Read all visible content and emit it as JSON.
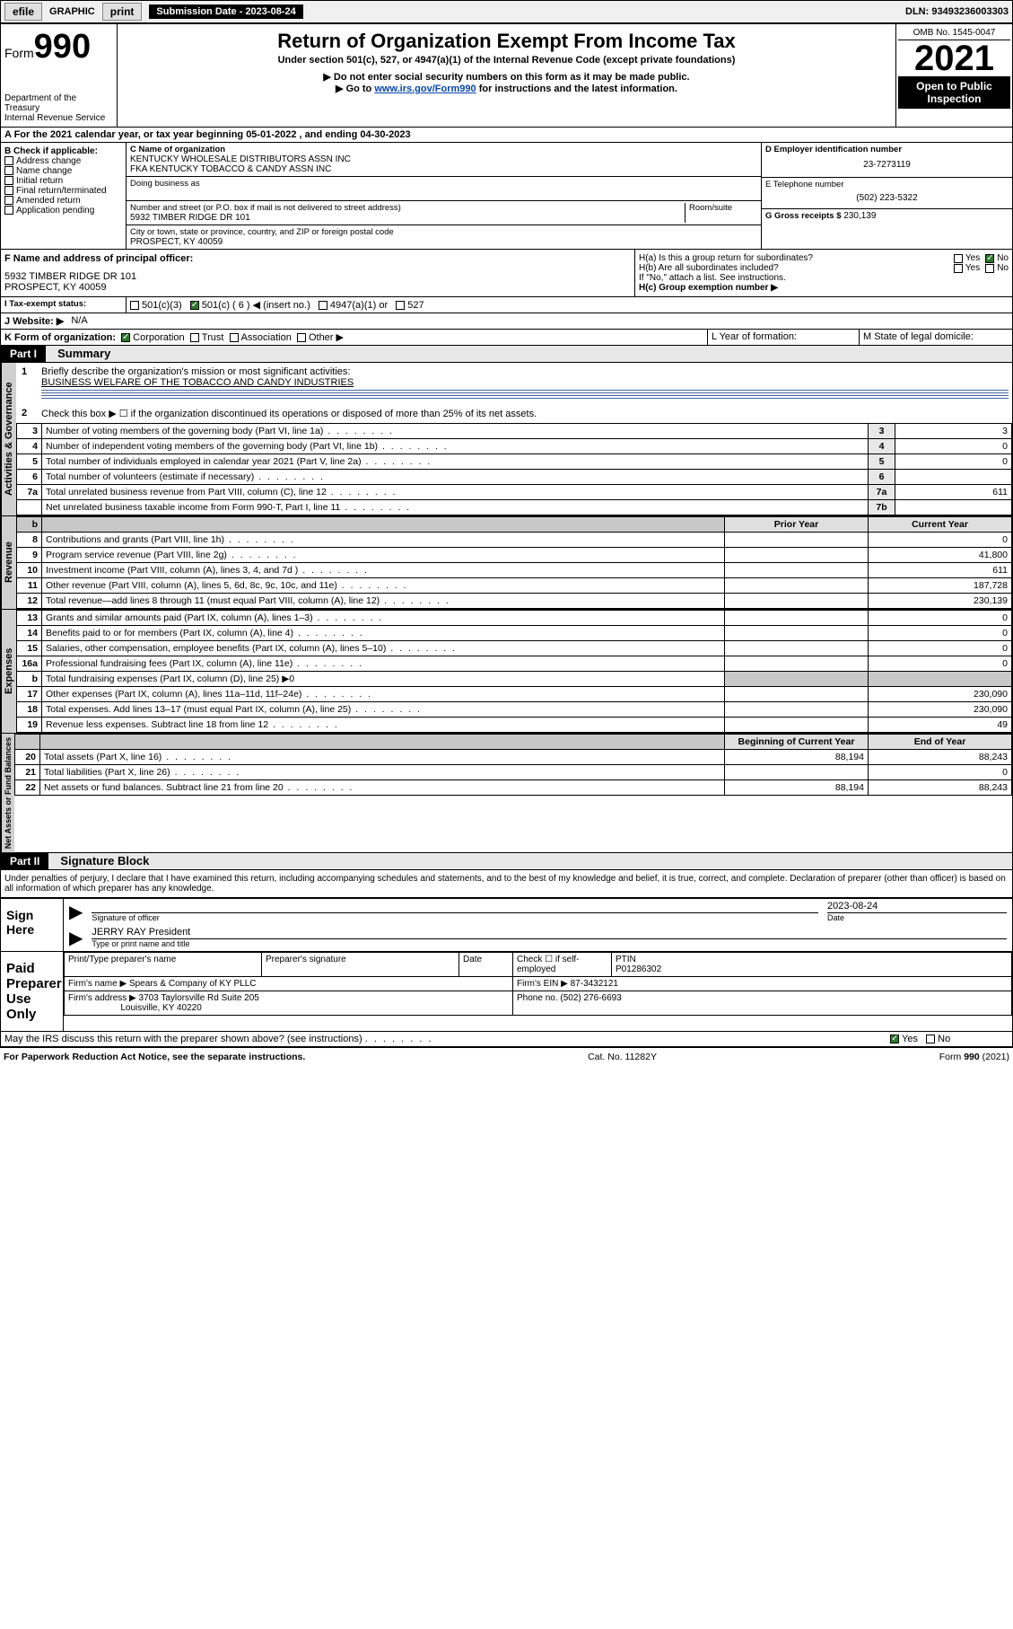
{
  "topbar": {
    "efile": "efile",
    "graphic": "GRAPHIC",
    "print": "print",
    "subdate_label": "Submission Date - 2023-08-24",
    "dln": "DLN: 93493236003303"
  },
  "header": {
    "form_label": "Form",
    "form_num": "990",
    "dept": "Department of the Treasury",
    "irs": "Internal Revenue Service",
    "title": "Return of Organization Exempt From Income Tax",
    "subtitle": "Under section 501(c), 527, or 4947(a)(1) of the Internal Revenue Code (except private foundations)",
    "note1": "▶ Do not enter social security numbers on this form as it may be made public.",
    "note2_a": "▶ Go to ",
    "note2_link": "www.irs.gov/Form990",
    "note2_b": " for instructions and the latest information.",
    "omb": "OMB No. 1545-0047",
    "year": "2021",
    "open": "Open to Public Inspection"
  },
  "line_a": "A For the 2021 calendar year, or tax year beginning 05-01-2022   , and ending 04-30-2023",
  "block_b": {
    "label": "B Check if applicable:",
    "opts": [
      "Address change",
      "Name change",
      "Initial return",
      "Final return/terminated",
      "Amended return",
      "Application pending"
    ]
  },
  "block_c": {
    "name_label": "C Name of organization",
    "name1": "KENTUCKY WHOLESALE DISTRIBUTORS ASSN INC",
    "name2": "FKA KENTUCKY TOBACCO & CANDY ASSN INC",
    "dba_label": "Doing business as",
    "street_label": "Number and street (or P.O. box if mail is not delivered to street address)",
    "room_label": "Room/suite",
    "street": "5932 TIMBER RIDGE DR 101",
    "city_label": "City or town, state or province, country, and ZIP or foreign postal code",
    "city": "PROSPECT, KY  40059"
  },
  "block_d": {
    "label": "D Employer identification number",
    "val": "23-7273119"
  },
  "block_e": {
    "label": "E Telephone number",
    "val": "(502) 223-5322"
  },
  "block_g": {
    "label": "G Gross receipts $",
    "val": "230,139"
  },
  "block_f": {
    "label": "F Name and address of principal officer:",
    "addr1": "5932 TIMBER RIDGE DR 101",
    "addr2": "PROSPECT, KY  40059"
  },
  "block_h": {
    "ha": "H(a)  Is this a group return for subordinates?",
    "hb": "H(b)  Are all subordinates included?",
    "hb_note": "If \"No,\" attach a list. See instructions.",
    "hc": "H(c)  Group exemption number ▶",
    "yes": "Yes",
    "no": "No"
  },
  "block_i": {
    "label": "I   Tax-exempt status:",
    "o1": "501(c)(3)",
    "o2": "501(c) ( 6 ) ◀ (insert no.)",
    "o3": "4947(a)(1) or",
    "o4": "527"
  },
  "block_j": {
    "label": "J   Website: ▶",
    "val": "N/A"
  },
  "block_k": {
    "label": "K Form of organization:",
    "o1": "Corporation",
    "o2": "Trust",
    "o3": "Association",
    "o4": "Other ▶"
  },
  "block_l": "L Year of formation:",
  "block_m": "M State of legal domicile:",
  "part1": {
    "hdr": "Part I",
    "title": "Summary"
  },
  "summary": {
    "q1": "Briefly describe the organization's mission or most significant activities:",
    "q1_ans": "BUSINESS WELFARE OF THE TOBACCO AND CANDY INDUSTRIES",
    "q2": "Check this box ▶ ☐  if the organization discontinued its operations or disposed of more than 25% of its net assets.",
    "rows_ag": [
      {
        "n": "3",
        "t": "Number of voting members of the governing body (Part VI, line 1a)",
        "box": "3",
        "v": "3"
      },
      {
        "n": "4",
        "t": "Number of independent voting members of the governing body (Part VI, line 1b)",
        "box": "4",
        "v": "0"
      },
      {
        "n": "5",
        "t": "Total number of individuals employed in calendar year 2021 (Part V, line 2a)",
        "box": "5",
        "v": "0"
      },
      {
        "n": "6",
        "t": "Total number of volunteers (estimate if necessary)",
        "box": "6",
        "v": ""
      },
      {
        "n": "7a",
        "t": "Total unrelated business revenue from Part VIII, column (C), line 12",
        "box": "7a",
        "v": "611"
      },
      {
        "n": "",
        "t": "Net unrelated business taxable income from Form 990-T, Part I, line 11",
        "box": "7b",
        "v": ""
      }
    ],
    "col_prior": "Prior Year",
    "col_curr": "Current Year",
    "rows_rev": [
      {
        "n": "8",
        "t": "Contributions and grants (Part VIII, line 1h)",
        "p": "",
        "c": "0"
      },
      {
        "n": "9",
        "t": "Program service revenue (Part VIII, line 2g)",
        "p": "",
        "c": "41,800"
      },
      {
        "n": "10",
        "t": "Investment income (Part VIII, column (A), lines 3, 4, and 7d )",
        "p": "",
        "c": "611"
      },
      {
        "n": "11",
        "t": "Other revenue (Part VIII, column (A), lines 5, 6d, 8c, 9c, 10c, and 11e)",
        "p": "",
        "c": "187,728"
      },
      {
        "n": "12",
        "t": "Total revenue—add lines 8 through 11 (must equal Part VIII, column (A), line 12)",
        "p": "",
        "c": "230,139"
      }
    ],
    "rows_exp": [
      {
        "n": "13",
        "t": "Grants and similar amounts paid (Part IX, column (A), lines 1–3)",
        "p": "",
        "c": "0"
      },
      {
        "n": "14",
        "t": "Benefits paid to or for members (Part IX, column (A), line 4)",
        "p": "",
        "c": "0"
      },
      {
        "n": "15",
        "t": "Salaries, other compensation, employee benefits (Part IX, column (A), lines 5–10)",
        "p": "",
        "c": "0"
      },
      {
        "n": "16a",
        "t": "Professional fundraising fees (Part IX, column (A), line 11e)",
        "p": "",
        "c": "0"
      },
      {
        "n": "b",
        "t": "Total fundraising expenses (Part IX, column (D), line 25) ▶0",
        "p": "grey",
        "c": "grey"
      },
      {
        "n": "17",
        "t": "Other expenses (Part IX, column (A), lines 11a–11d, 11f–24e)",
        "p": "",
        "c": "230,090"
      },
      {
        "n": "18",
        "t": "Total expenses. Add lines 13–17 (must equal Part IX, column (A), line 25)",
        "p": "",
        "c": "230,090"
      },
      {
        "n": "19",
        "t": "Revenue less expenses. Subtract line 18 from line 12",
        "p": "",
        "c": "49"
      }
    ],
    "col_beg": "Beginning of Current Year",
    "col_end": "End of Year",
    "rows_net": [
      {
        "n": "20",
        "t": "Total assets (Part X, line 16)",
        "p": "88,194",
        "c": "88,243"
      },
      {
        "n": "21",
        "t": "Total liabilities (Part X, line 26)",
        "p": "",
        "c": "0"
      },
      {
        "n": "22",
        "t": "Net assets or fund balances. Subtract line 21 from line 20",
        "p": "88,194",
        "c": "88,243"
      }
    ],
    "tab_ag": "Activities & Governance",
    "tab_rev": "Revenue",
    "tab_exp": "Expenses",
    "tab_net": "Net Assets or Fund Balances"
  },
  "part2": {
    "hdr": "Part II",
    "title": "Signature Block"
  },
  "sig": {
    "decl": "Under penalties of perjury, I declare that I have examined this return, including accompanying schedules and statements, and to the best of my knowledge and belief, it is true, correct, and complete. Declaration of preparer (other than officer) is based on all information of which preparer has any knowledge.",
    "sign_here": "Sign Here",
    "sig_officer": "Signature of officer",
    "date": "Date",
    "date_val": "2023-08-24",
    "name_title": "JERRY RAY President",
    "name_label": "Type or print name and title",
    "paid": "Paid Preparer Use Only",
    "prep_name_h": "Print/Type preparer's name",
    "prep_sig_h": "Preparer's signature",
    "date_h": "Date",
    "check_h": "Check ☐ if self-employed",
    "ptin_h": "PTIN",
    "ptin_v": "P01286302",
    "firm_name_l": "Firm's name    ▶",
    "firm_name_v": "Spears & Company of KY PLLC",
    "firm_ein_l": "Firm's EIN ▶",
    "firm_ein_v": "87-3432121",
    "firm_addr_l": "Firm's address ▶",
    "firm_addr_v1": "3703 Taylorsville Rd Suite 205",
    "firm_addr_v2": "Louisville, KY  40220",
    "phone_l": "Phone no.",
    "phone_v": "(502) 276-6693",
    "may_irs": "May the IRS discuss this return with the preparer shown above? (see instructions)",
    "yes": "Yes",
    "no": "No"
  },
  "footer": {
    "left": "For Paperwork Reduction Act Notice, see the separate instructions.",
    "mid": "Cat. No. 11282Y",
    "right": "Form 990 (2021)"
  }
}
